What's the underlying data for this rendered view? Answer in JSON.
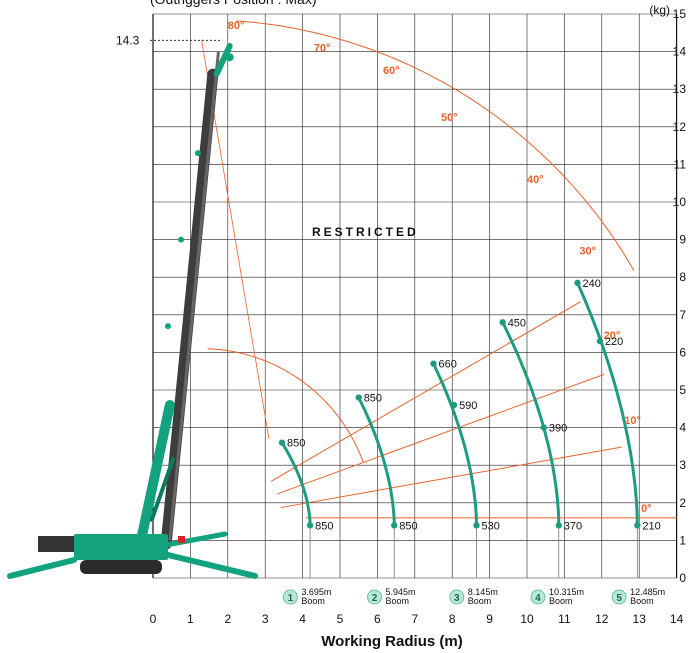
{
  "chart_data": {
    "type": "line",
    "title": "(Outriggers Position : Max)",
    "xlabel": "Working Radius (m)",
    "ylabel": "",
    "y_unit": "(kg)",
    "xlim": [
      0,
      14
    ],
    "ylim": [
      0,
      15
    ],
    "x_ticks": [
      "0",
      "1",
      "2",
      "3",
      "4",
      "5",
      "6",
      "7",
      "8",
      "9",
      "10",
      "11",
      "12",
      "13",
      "14"
    ],
    "y_ticks": [
      "0",
      "1",
      "2",
      "3",
      "4",
      "5",
      "6",
      "7",
      "8",
      "9",
      "10",
      "11",
      "12",
      "13",
      "14",
      "15"
    ],
    "max_height_label": "14.3",
    "restricted_label": "RESTRICTED",
    "angles": [
      "80°",
      "70°",
      "60°",
      "50°",
      "40°",
      "30°",
      "20°",
      "10°",
      "0°"
    ],
    "series": [
      {
        "name": "3.695m Boom",
        "number": "1",
        "length_label": "3.695m",
        "boom_word": "Boom",
        "reach": 3.7,
        "points": [
          {
            "x": 3.45,
            "y": 3.6,
            "load": "850"
          },
          {
            "x": 4.2,
            "y": 1.4,
            "load": "850"
          }
        ]
      },
      {
        "name": "5.945m Boom",
        "number": "2",
        "length_label": "5.945m",
        "boom_word": "Boom",
        "reach": 5.95,
        "points": [
          {
            "x": 5.5,
            "y": 4.8,
            "load": "850"
          },
          {
            "x": 6.45,
            "y": 1.4,
            "load": "850"
          }
        ]
      },
      {
        "name": "8.145m Boom",
        "number": "3",
        "length_label": "8.145m",
        "boom_word": "Boom",
        "reach": 8.15,
        "points": [
          {
            "x": 7.5,
            "y": 5.7,
            "load": "660"
          },
          {
            "x": 8.05,
            "y": 4.6,
            "load": "590"
          },
          {
            "x": 8.65,
            "y": 1.4,
            "load": "530"
          }
        ]
      },
      {
        "name": "10.315m Boom",
        "number": "4",
        "length_label": "10.315m",
        "boom_word": "Boom",
        "reach": 10.32,
        "points": [
          {
            "x": 9.35,
            "y": 6.8,
            "load": "450"
          },
          {
            "x": 10.45,
            "y": 4.0,
            "load": "390"
          },
          {
            "x": 10.85,
            "y": 1.4,
            "load": "370"
          }
        ]
      },
      {
        "name": "12.485m Boom",
        "number": "5",
        "length_label": "12.485m",
        "boom_word": "Boom",
        "reach": 12.49,
        "points": [
          {
            "x": 11.35,
            "y": 7.85,
            "load": "240"
          },
          {
            "x": 11.95,
            "y": 6.3,
            "load": "220"
          },
          {
            "x": 12.95,
            "y": 1.4,
            "load": "210"
          }
        ]
      }
    ]
  },
  "colors": {
    "angle": "#e8622c",
    "curve": "#1f9c80",
    "crane": "#12a37e",
    "boom": "#4a4a4a",
    "grid": "#222222"
  }
}
